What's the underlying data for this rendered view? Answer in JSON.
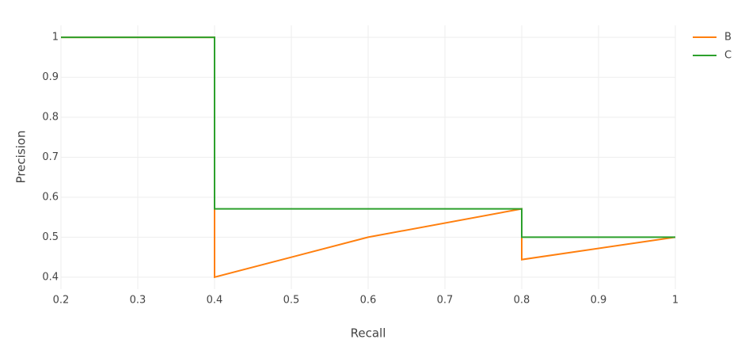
{
  "chart_data": {
    "type": "line",
    "x_label": "Recall",
    "y_label": "Precision",
    "series": [
      {
        "name": "B",
        "color": "#ff7f0e",
        "x": [
          0.2,
          0.4,
          0.4,
          0.6,
          0.8,
          0.8,
          1
        ],
        "values": [
          1,
          1,
          0.4,
          0.5,
          0.571,
          0.444,
          0.5
        ]
      },
      {
        "name": "C",
        "color": "#2ca02c",
        "x": [
          0.2,
          0.4,
          0.4,
          0.8,
          0.8,
          1
        ],
        "values": [
          1,
          1,
          0.571,
          0.571,
          0.5,
          0.5
        ]
      }
    ],
    "xlim": [
      0.2,
      1
    ],
    "ylim": [
      0.37,
      1.03
    ],
    "xticks": [
      0.2,
      0.3,
      0.4,
      0.5,
      0.6,
      0.7,
      0.8,
      0.9,
      1
    ],
    "yticks": [
      0.4,
      0.5,
      0.6,
      0.7,
      0.8,
      0.9,
      1
    ],
    "grid": true,
    "legend": "top-right"
  }
}
